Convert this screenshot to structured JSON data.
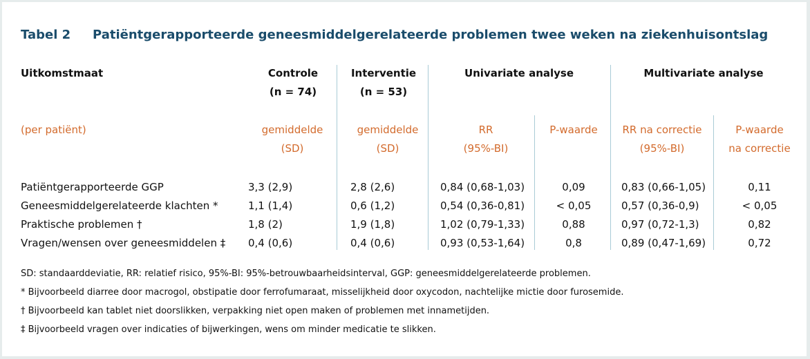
{
  "table": {
    "label": "Tabel 2",
    "title": "Patiëntgerapporteerde geneesmiddelgerelateerde problemen twee weken na ziekenhuisontslag",
    "headers": {
      "outcome": "Uitkomstmaat",
      "control": "Controle",
      "control_n": "(n = 74)",
      "intervention": "Interventie",
      "intervention_n": "(n = 53)",
      "univariate": "Univariate analyse",
      "multivariate": "Multivariate analyse"
    },
    "subheaders": {
      "per_patient": "(per patiënt)",
      "control_mean": "gemiddelde",
      "control_sd": "(SD)",
      "intervention_mean": "gemiddelde",
      "intervention_sd": "(SD)",
      "rr": "RR",
      "rr_ci": "(95%-BI)",
      "p": "P-waarde",
      "rr_adj": "RR na correctie",
      "rr_adj_ci": "(95%-BI)",
      "p_adj": "P-waarde",
      "p_adj_2": "na correctie"
    },
    "rows": [
      {
        "outcome": "Patiëntgerapporteerde GGP",
        "control": "3,3 (2,9)",
        "intervention": "2,8 (2,6)",
        "rr": "0,84 (0,68-1,03)",
        "p": "0,09",
        "rr_adj": "0,83 (0,66-1,05)",
        "p_adj": "0,11"
      },
      {
        "outcome": "Geneesmiddelgerelateerde klachten *",
        "control": "1,1 (1,4)",
        "intervention": "0,6 (1,2)",
        "rr": "0,54 (0,36-0,81)",
        "p": "< 0,05",
        "rr_adj": "0,57 (0,36-0,9)",
        "p_adj": "< 0,05"
      },
      {
        "outcome": "Praktische problemen †",
        "control": "1,8 (2)",
        "intervention": "1,9 (1,8)",
        "rr": "1,02 (0,79-1,33)",
        "p": "0,88",
        "rr_adj": "0,97 (0,72-1,3)",
        "p_adj": "0,82"
      },
      {
        "outcome": "Vragen/wensen over geneesmiddelen ‡",
        "control": "0,4 (0,6)",
        "intervention": "0,4 (0,6)",
        "rr": "0,93 (0,53-1,64)",
        "p": "0,8",
        "rr_adj": "0,89 (0,47-1,69)",
        "p_adj": "0,72"
      }
    ],
    "notes": [
      "SD: standaarddeviatie, RR: relatief risico, 95%-BI: 95%-betrouwbaarheidsinterval, GGP: geneesmiddelgerelateerde problemen.",
      "* Bijvoorbeeld diarree door macrogol, obstipatie door ferrofumaraat, misselijkheid door oxycodon, nachtelijke mictie door furosemide.",
      "† Bijvoorbeeld kan tablet niet doorslikken, verpakking niet open maken of problemen met innametijden.",
      "‡ Bijvoorbeeld vragen over indicaties of bijwerkingen, wens om minder medicatie te slikken."
    ]
  },
  "colors": {
    "title": "#1a4c6b",
    "subheader": "#d36b2d",
    "divider": "#a9cbd6"
  }
}
